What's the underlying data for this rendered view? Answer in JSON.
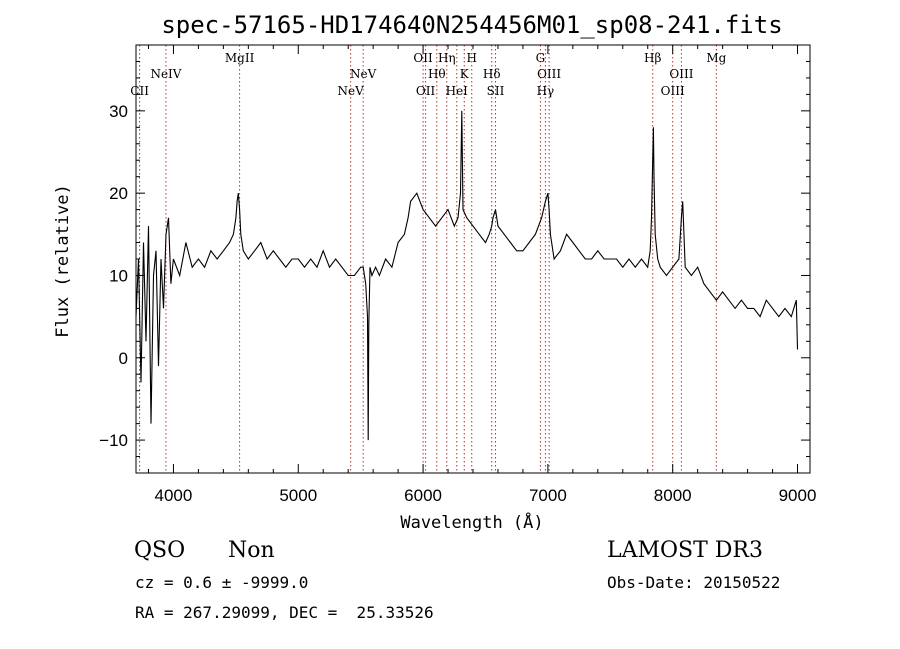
{
  "chart_data": {
    "type": "line",
    "title": "spec-57165-HD174640N254456M01_sp08-241.fits",
    "xlabel": "Wavelength (Å)",
    "ylabel": "Flux (relative)",
    "xlim": [
      3700,
      9100
    ],
    "ylim": [
      -14,
      38
    ],
    "xticks": [
      4000,
      5000,
      6000,
      7000,
      8000,
      9000
    ],
    "xtick_labels": [
      "4000",
      "5000",
      "6000",
      "7000",
      "8000",
      "9000"
    ],
    "yticks": [
      -10,
      0,
      10,
      20,
      30
    ],
    "ytick_labels": [
      "−10",
      "0",
      "10",
      "20",
      "30"
    ],
    "series": [
      {
        "name": "flux",
        "x": [
          3700,
          3720,
          3740,
          3760,
          3780,
          3800,
          3820,
          3840,
          3860,
          3880,
          3900,
          3920,
          3940,
          3960,
          3980,
          4000,
          4050,
          4100,
          4150,
          4200,
          4250,
          4300,
          4350,
          4400,
          4450,
          4480,
          4500,
          4510,
          4520,
          4530,
          4540,
          4560,
          4600,
          4650,
          4700,
          4750,
          4800,
          4850,
          4900,
          4950,
          5000,
          5050,
          5100,
          5150,
          5200,
          5250,
          5300,
          5350,
          5400,
          5450,
          5500,
          5520,
          5540,
          5555,
          5560,
          5565,
          5575,
          5590,
          5620,
          5650,
          5700,
          5750,
          5800,
          5850,
          5880,
          5900,
          5950,
          6000,
          6050,
          6100,
          6150,
          6200,
          6250,
          6280,
          6300,
          6310,
          6320,
          6350,
          6400,
          6450,
          6500,
          6530,
          6550,
          6560,
          6580,
          6600,
          6650,
          6700,
          6750,
          6800,
          6850,
          6900,
          6950,
          6980,
          7000,
          7010,
          7020,
          7050,
          7100,
          7150,
          7200,
          7250,
          7300,
          7350,
          7400,
          7450,
          7500,
          7550,
          7600,
          7650,
          7700,
          7750,
          7800,
          7820,
          7830,
          7840,
          7845,
          7850,
          7860,
          7880,
          7900,
          7950,
          8000,
          8050,
          8070,
          8080,
          8100,
          8150,
          8200,
          8250,
          8300,
          8350,
          8400,
          8450,
          8500,
          8550,
          8600,
          8650,
          8700,
          8750,
          8800,
          8850,
          8900,
          8950,
          8990,
          9000
        ],
        "values": [
          5,
          12,
          -3,
          14,
          2,
          16,
          -8,
          10,
          13,
          -1,
          12,
          6,
          15,
          17,
          9,
          12,
          10,
          14,
          11,
          12,
          11,
          13,
          12,
          13,
          14,
          15,
          17,
          19,
          20,
          18,
          15,
          13,
          12,
          13,
          14,
          12,
          13,
          12,
          11,
          12,
          12,
          11,
          12,
          11,
          13,
          11,
          12,
          11,
          10,
          10,
          11,
          11,
          9,
          5,
          -10,
          4,
          11,
          10,
          11,
          10,
          12,
          11,
          14,
          15,
          17,
          19,
          20,
          18,
          17,
          16,
          17,
          18,
          16,
          17,
          20,
          30,
          18,
          17,
          16,
          15,
          14,
          15,
          16,
          17,
          18,
          16,
          15,
          14,
          13,
          13,
          14,
          15,
          17,
          19,
          20,
          18,
          15,
          12,
          13,
          15,
          14,
          13,
          12,
          12,
          13,
          12,
          12,
          12,
          11,
          12,
          11,
          12,
          11,
          13,
          17,
          24,
          28,
          22,
          15,
          12,
          11,
          10,
          11,
          12,
          17,
          19,
          11,
          10,
          11,
          9,
          8,
          7,
          8,
          7,
          6,
          7,
          6,
          6,
          5,
          7,
          6,
          5,
          6,
          5,
          7,
          1
        ]
      }
    ],
    "line_labels": [
      {
        "name": "CII",
        "wavelength": 3729,
        "row": 3
      },
      {
        "name": "NeIV",
        "wavelength": 3940,
        "row": 2
      },
      {
        "name": "MgII",
        "wavelength": 4530,
        "row": 1
      },
      {
        "name": "NeV",
        "wavelength": 5420,
        "row": 3
      },
      {
        "name": "NeV",
        "wavelength": 5520,
        "row": 2
      },
      {
        "name": "OII",
        "wavelength": 6000,
        "row": 1
      },
      {
        "name": "OII",
        "wavelength": 6020,
        "row": 3
      },
      {
        "name": "Hθ",
        "wavelength": 6110,
        "row": 2
      },
      {
        "name": "Hη",
        "wavelength": 6190,
        "row": 1
      },
      {
        "name": "HeI",
        "wavelength": 6270,
        "row": 3
      },
      {
        "name": "K",
        "wavelength": 6330,
        "row": 2
      },
      {
        "name": "H",
        "wavelength": 6390,
        "row": 1
      },
      {
        "name": "Hδ",
        "wavelength": 6550,
        "row": 2
      },
      {
        "name": "SII",
        "wavelength": 6580,
        "row": 3
      },
      {
        "name": "G",
        "wavelength": 6940,
        "row": 1
      },
      {
        "name": "OIII",
        "wavelength": 7010,
        "row": 2
      },
      {
        "name": "Hγ",
        "wavelength": 6980,
        "row": 3
      },
      {
        "name": "Hβ",
        "wavelength": 7840,
        "row": 1
      },
      {
        "name": "OIII",
        "wavelength": 8070,
        "row": 2
      },
      {
        "name": "OIII",
        "wavelength": 8000,
        "row": 3
      },
      {
        "name": "Mg",
        "wavelength": 8350,
        "row": 1
      }
    ],
    "marker_lines": [
      3729,
      3940,
      4530,
      5420,
      5520,
      6000,
      6020,
      6110,
      6190,
      6270,
      6330,
      6390,
      6550,
      6580,
      6940,
      6980,
      7010,
      7840,
      8000,
      8070,
      8350
    ],
    "colors": {
      "spectrum": "#000000",
      "markers": "#cc2a1a",
      "axes": "#000000"
    }
  },
  "info": {
    "class": "QSO",
    "subclass": "Non",
    "survey": "LAMOST DR3",
    "cz": "cz = 0.6 ± -9999.0",
    "obs_date": "Obs-Date: 20150522",
    "radec": "RA = 267.29099, DEC =  25.33526"
  }
}
